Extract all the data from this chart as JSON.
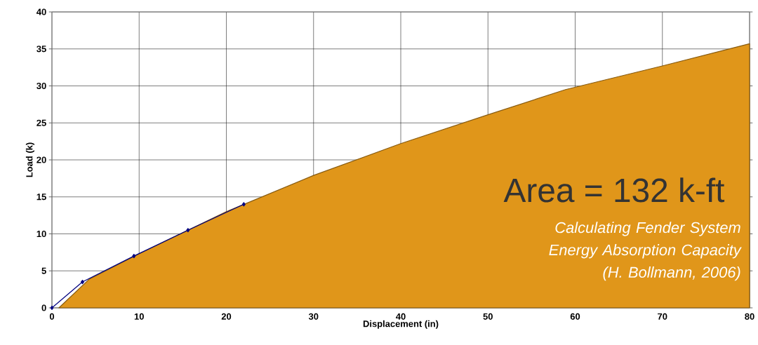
{
  "chart_data": {
    "type": "area",
    "xlabel": "Displacement (in)",
    "ylabel": "Load (k)",
    "xlim": [
      0,
      80
    ],
    "ylim": [
      0,
      40
    ],
    "xticks": [
      0,
      10,
      20,
      30,
      40,
      50,
      60,
      70,
      80
    ],
    "yticks": [
      0,
      5,
      10,
      15,
      20,
      25,
      30,
      35,
      40
    ],
    "grid": true,
    "series": [
      {
        "color": "#e0961a",
        "x": [
          0.8,
          4.3,
          10,
          20,
          30,
          40,
          50,
          58.9,
          70,
          80
        ],
        "values": [
          0,
          3.9,
          7.3,
          13.0,
          17.9,
          22.2,
          26.1,
          29.5,
          32.7,
          35.7
        ]
      },
      {
        "type": "line",
        "color": "#000080",
        "marker": "diamond",
        "x": [
          0,
          3.5,
          9.4,
          15.6,
          22
        ],
        "values": [
          0,
          3.5,
          7.0,
          10.5,
          14.0
        ]
      }
    ],
    "annotations": [
      "Area = 132 k-ft",
      "Calculating Fender System Energy Absorption Capacity (H. Bollmann, 2006)"
    ]
  }
}
